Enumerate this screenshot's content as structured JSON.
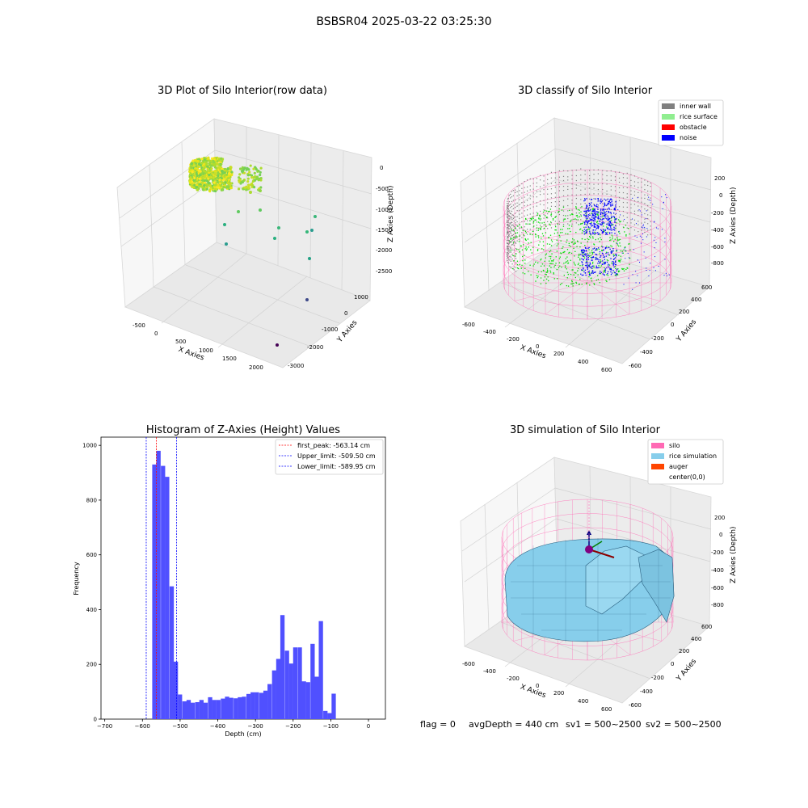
{
  "figure": {
    "suptitle": "BSBSR04 2025-03-22 03:25:30",
    "footer": {
      "flag": "flag = 0",
      "avg_depth": "avgDepth = 440 cm",
      "sv1": "sv1 = 500~2500",
      "sv2": "sv2 = 500~2500"
    }
  },
  "colors": {
    "hist_bar": "#5050ff",
    "inner_wall": "#808080",
    "rice_surface": "#90ee90",
    "obstacle": "#ff0000",
    "noise": "#0000ff",
    "silo": "#ff69b4",
    "rice_simulation": "#87ceeb",
    "auger": "#ff4500"
  },
  "chart_data": [
    {
      "type": "scatter",
      "title": "3D Plot of Silo Interior(row data)",
      "xlabel": "X Axies",
      "ylabel": "Y Axies",
      "zlabel": "Z Axies (Depth)",
      "x_ticks": [
        "-500",
        "0",
        "500",
        "1000",
        "1500",
        "2000"
      ],
      "y_ticks": [
        "-3000",
        "-2000",
        "-1000",
        "0",
        "1000"
      ],
      "z_ticks": [
        "-2500",
        "-2000",
        "-1500",
        "-1000",
        "-500",
        "0"
      ],
      "xlim": [
        -650,
        2350
      ],
      "ylim": [
        -3100,
        1400
      ],
      "zlim": [
        -2800,
        100
      ],
      "colormap": "viridis",
      "points": [
        {
          "x": -150,
          "y": 600,
          "z": -100
        },
        {
          "x": 0,
          "y": 500,
          "z": -150
        },
        {
          "x": 150,
          "y": 400,
          "z": -200
        },
        {
          "x": 300,
          "y": 300,
          "z": -300
        },
        {
          "x": 100,
          "y": 200,
          "z": -500
        },
        {
          "x": 200,
          "y": 0,
          "z": -700
        },
        {
          "x": 300,
          "y": -100,
          "z": -900
        },
        {
          "x": 600,
          "y": 0,
          "z": -1000
        },
        {
          "x": 800,
          "y": -300,
          "z": -1200
        },
        {
          "x": 1100,
          "y": -500,
          "z": -1300
        },
        {
          "x": 1200,
          "y": -600,
          "z": -1500
        },
        {
          "x": 900,
          "y": -800,
          "z": -1700
        },
        {
          "x": 1300,
          "y": -1000,
          "z": -1900
        },
        {
          "x": 1700,
          "y": -1600,
          "z": -2200
        },
        {
          "x": 2100,
          "y": -2600,
          "z": -2700
        }
      ]
    },
    {
      "type": "scatter",
      "title": "3D classify of Silo Interior",
      "xlabel": "X Axies",
      "ylabel": "Y Axies",
      "zlabel": "Z Axies (Depth)",
      "x_ticks": [
        "-600",
        "-400",
        "-200",
        "0",
        "200",
        "400",
        "600"
      ],
      "y_ticks": [
        "-600",
        "-400",
        "-200",
        "0",
        "200",
        "400",
        "600"
      ],
      "z_ticks": [
        "-800",
        "-600",
        "-400",
        "-200",
        "0",
        "200"
      ],
      "xlim": [
        -650,
        650
      ],
      "ylim": [
        -650,
        650
      ],
      "zlim": [
        -950,
        350
      ],
      "legend": {
        "position": "upper right",
        "entries": [
          "inner wall",
          "rice surface",
          "obstacle",
          "noise"
        ]
      }
    },
    {
      "type": "bar",
      "title": "Histogram of Z-Axies (Height) Values",
      "xlabel": "Depth (cm)",
      "ylabel": "Frequency",
      "x_ticks": [
        "−700",
        "−600",
        "−500",
        "−400",
        "−300",
        "−200",
        "−100",
        "0"
      ],
      "y_ticks": [
        "0",
        "200",
        "400",
        "600",
        "800",
        "1000"
      ],
      "xlim": [
        -710,
        45
      ],
      "ylim": [
        0,
        1030
      ],
      "bin_width": 11.36,
      "bins": [
        [
          -574,
          930
        ],
        [
          -563,
          980
        ],
        [
          -551,
          925
        ],
        [
          -540,
          885
        ],
        [
          -528,
          485
        ],
        [
          -517,
          210
        ],
        [
          -506,
          90
        ],
        [
          -494,
          65
        ],
        [
          -483,
          70
        ],
        [
          -472,
          60
        ],
        [
          -460,
          62
        ],
        [
          -449,
          70
        ],
        [
          -438,
          60
        ],
        [
          -426,
          80
        ],
        [
          -415,
          70
        ],
        [
          -404,
          70
        ],
        [
          -392,
          75
        ],
        [
          -381,
          82
        ],
        [
          -370,
          78
        ],
        [
          -358,
          76
        ],
        [
          -347,
          80
        ],
        [
          -336,
          82
        ],
        [
          -324,
          92
        ],
        [
          -313,
          98
        ],
        [
          -302,
          98
        ],
        [
          -290,
          96
        ],
        [
          -279,
          104
        ],
        [
          -268,
          128
        ],
        [
          -256,
          178
        ],
        [
          -245,
          220
        ],
        [
          -234,
          380
        ],
        [
          -222,
          250
        ],
        [
          -211,
          203
        ],
        [
          -200,
          262
        ],
        [
          -188,
          262
        ],
        [
          -177,
          138
        ],
        [
          -166,
          135
        ],
        [
          -154,
          275
        ],
        [
          -143,
          155
        ],
        [
          -132,
          358
        ],
        [
          -120,
          30
        ],
        [
          -109,
          22
        ],
        [
          -98,
          93
        ]
      ],
      "vlines": [
        {
          "label": "first_peak: -563.14 cm",
          "x": -563.14,
          "color": "#ff0000"
        },
        {
          "label": "Upper_limit: -509.50 cm",
          "x": -509.5,
          "color": "#0000ff"
        },
        {
          "label": "Lower_limit: -589.95 cm",
          "x": -589.95,
          "color": "#0000ff"
        }
      ],
      "legend": {
        "position": "upper right"
      }
    },
    {
      "type": "surface",
      "title": "3D simulation of Silo Interior",
      "xlabel": "X Axies",
      "ylabel": "Y Axies",
      "zlabel": "Z Axies (Depth)",
      "x_ticks": [
        "-600",
        "-400",
        "-200",
        "0",
        "200",
        "400",
        "600"
      ],
      "y_ticks": [
        "-600",
        "-400",
        "-200",
        "0",
        "200",
        "400",
        "600"
      ],
      "z_ticks": [
        "-800",
        "-600",
        "-400",
        "-200",
        "0",
        "200"
      ],
      "xlim": [
        -650,
        650
      ],
      "ylim": [
        -650,
        650
      ],
      "zlim": [
        -950,
        350
      ],
      "legend": {
        "position": "upper right",
        "entries": [
          "silo",
          "rice simulation",
          "auger",
          "center(0,0)"
        ]
      }
    }
  ]
}
